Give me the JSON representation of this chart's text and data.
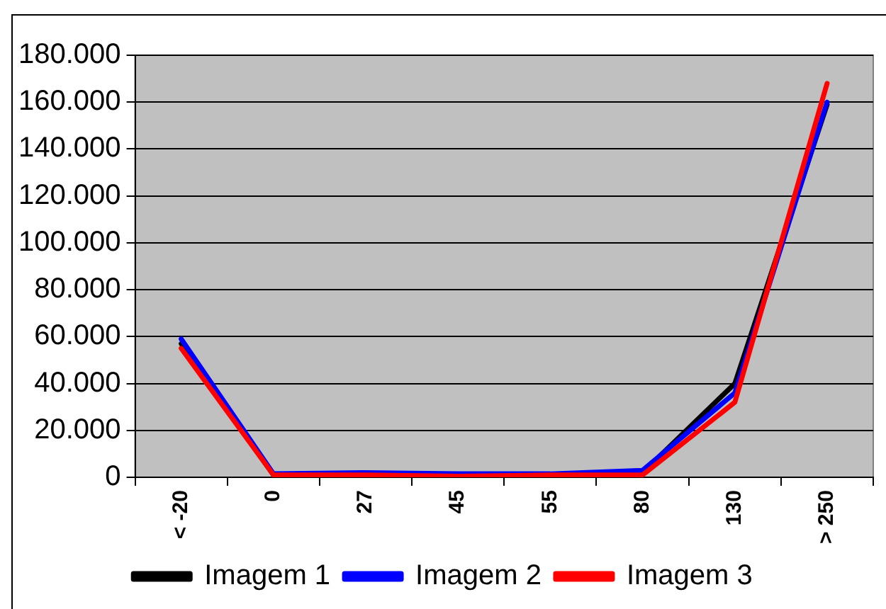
{
  "chart_data": {
    "type": "line",
    "categories": [
      "< -20",
      "0",
      "27",
      "45",
      "55",
      "80",
      "130",
      "> 250"
    ],
    "series": [
      {
        "name": "Imagem 1",
        "color": "#000000",
        "values": [
          57000,
          1000,
          1000,
          1000,
          1000,
          2000,
          40000,
          159000
        ]
      },
      {
        "name": "Imagem 2",
        "color": "#0000ff",
        "values": [
          59000,
          1500,
          2000,
          1500,
          1500,
          3000,
          36000,
          160000
        ]
      },
      {
        "name": "Imagem 3",
        "color": "#ff0000",
        "values": [
          55000,
          1000,
          1000,
          500,
          1000,
          1000,
          32000,
          168000
        ]
      }
    ],
    "ylim": [
      0,
      180000
    ],
    "yticks": [
      0,
      {
        "value": 20000,
        "label": "20.000"
      },
      {
        "value": 40000,
        "label": "40.000"
      },
      {
        "value": 60000,
        "label": "60.000"
      },
      {
        "value": 80000,
        "label": "80.000"
      },
      {
        "value": 100000,
        "label": "100.000"
      },
      {
        "value": 120000,
        "label": "120.000"
      },
      {
        "value": 140000,
        "label": "140.000"
      },
      {
        "value": 160000,
        "label": "160.000"
      },
      {
        "value": 180000,
        "label": "180.000"
      }
    ],
    "grid": "y",
    "legend": "bottom",
    "marker": "none",
    "line_style": "solid"
  }
}
